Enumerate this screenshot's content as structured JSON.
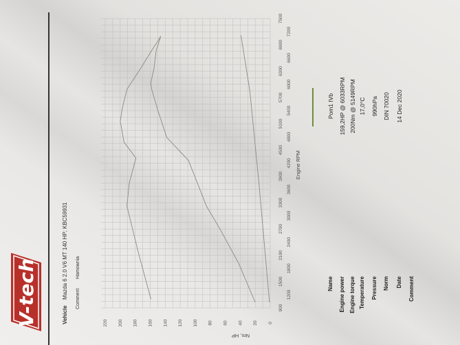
{
  "logo": {
    "text": "V-tech",
    "color": "#b8302a"
  },
  "header": {
    "vehicle_label": "Vehicle",
    "vehicle_value": "Mazda 6 2.0 V6 MT 140 HP; KBC59931",
    "comment_label": "Comment",
    "comment_value": "Hamownia"
  },
  "chart_data": {
    "type": "line",
    "xlabel": "Engine RPM",
    "ylabel": "Nm, HP",
    "xlim": [
      900,
      7500
    ],
    "ylim": [
      0,
      220
    ],
    "x_ticks": [
      900,
      1200,
      1500,
      1800,
      2100,
      2400,
      2700,
      3000,
      3300,
      3600,
      3900,
      4200,
      4500,
      4800,
      5100,
      5400,
      5700,
      6000,
      6300,
      6600,
      6900,
      7200,
      7500
    ],
    "y_ticks": [
      0,
      20,
      40,
      60,
      80,
      100,
      120,
      140,
      160,
      180,
      200,
      220
    ],
    "grid": true,
    "legend_placement": "below",
    "line_color": "#8b8b80",
    "series": [
      {
        "x": [
          1100,
          2175,
          3220,
          3740,
          4320,
          4680,
          5075,
          5149,
          5470,
          5885,
          6355,
          6720,
          7035,
          7100
        ],
        "y": [
          159,
          176,
          191,
          188,
          179,
          195,
          199,
          200,
          197,
          191,
          173,
          160,
          148,
          146
        ]
      },
      {
        "x": [
          1025,
          1915,
          2700,
          3220,
          4265,
          4790,
          5415,
          5885,
          6033,
          6355,
          6775,
          7035,
          7100
        ],
        "y": [
          20,
          42,
          67,
          85,
          109,
          138,
          150,
          158,
          159.2,
          155,
          152,
          147,
          146
        ]
      },
      {
        "x": [
          1025,
          3740,
          5830,
          7115
        ],
        "y": [
          1,
          15,
          27,
          39
        ]
      }
    ]
  },
  "legend": {
    "name": "Pom1 IVb",
    "color": "#6f8c3c"
  },
  "info": [
    {
      "label": "Name",
      "value": "Pom1 IVb"
    },
    {
      "label": "Engine power",
      "value": "159,2HP @ 6033RPM"
    },
    {
      "label": "Engine torque",
      "value": "200Nm @ 5149RPM"
    },
    {
      "label": "Temperature",
      "value": "17,0°C"
    },
    {
      "label": "Pressure",
      "value": "990hPa"
    },
    {
      "label": "Norm",
      "value": "DIN 70020"
    },
    {
      "label": "Date",
      "value": "14 Dec 2020"
    },
    {
      "label": "Comment",
      "value": ""
    }
  ]
}
